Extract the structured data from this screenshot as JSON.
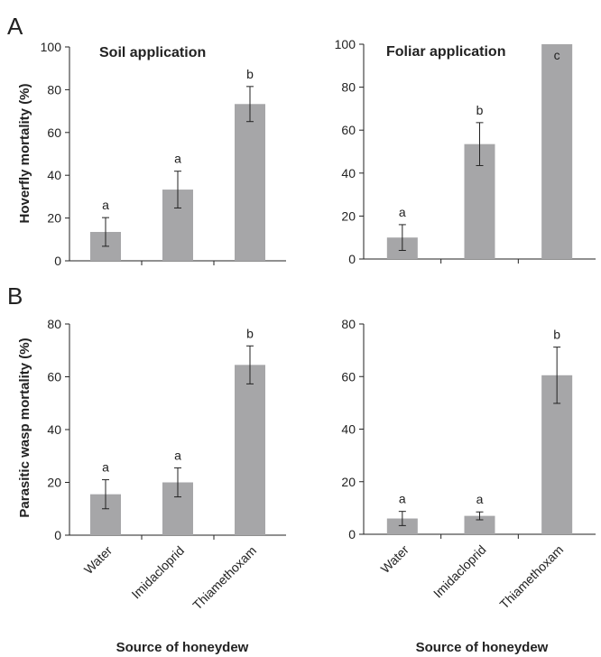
{
  "figure": {
    "panel_labels": [
      "A",
      "B"
    ],
    "xlabel": "Source of honeydew",
    "colors": {
      "bar": "#a6a6a8",
      "axis": "#222222",
      "text": "#222222"
    }
  },
  "chart_data": [
    {
      "type": "bar",
      "title": "Soil application",
      "panel": "A",
      "ylabel": "Hoverfly mortality (%)",
      "xlabel": "",
      "categories": [
        "Water",
        "Imidacloprid",
        "Thiamethoxam"
      ],
      "values": [
        13.5,
        33.3,
        73.3
      ],
      "error": [
        6.7,
        8.6,
        8.2
      ],
      "significance": [
        "a",
        "a",
        "b"
      ],
      "ylim": [
        0,
        100
      ],
      "yticks": [
        0,
        20,
        40,
        60,
        80,
        100
      ],
      "grid": false
    },
    {
      "type": "bar",
      "title": "Foliar application",
      "panel": "A",
      "ylabel": "",
      "xlabel": "",
      "categories": [
        "Water",
        "Imidacloprid",
        "Thiamethoxam"
      ],
      "values": [
        10,
        53.5,
        100
      ],
      "error": [
        6,
        10,
        0
      ],
      "significance": [
        "a",
        "b",
        "c"
      ],
      "ylim": [
        0,
        100
      ],
      "yticks": [
        0,
        20,
        40,
        60,
        80,
        100
      ],
      "grid": false
    },
    {
      "type": "bar",
      "title": "",
      "panel": "B",
      "ylabel": "Parasitic wasp mortality (%)",
      "xlabel": "Source of honeydew",
      "categories": [
        "Water",
        "Imidacloprid",
        "Thiamethoxam"
      ],
      "values": [
        15.5,
        20,
        64.5
      ],
      "error": [
        5.5,
        5.5,
        7.2
      ],
      "significance": [
        "a",
        "a",
        "b"
      ],
      "ylim": [
        0,
        80
      ],
      "yticks": [
        0,
        20,
        40,
        60,
        80
      ],
      "grid": false
    },
    {
      "type": "bar",
      "title": "",
      "panel": "B",
      "ylabel": "",
      "xlabel": "Source of honeydew",
      "categories": [
        "Water",
        "Imidacloprid",
        "Thiamethoxam"
      ],
      "values": [
        6,
        7,
        60.5
      ],
      "error": [
        2.7,
        1.5,
        10.7
      ],
      "significance": [
        "a",
        "a",
        "b"
      ],
      "ylim": [
        0,
        80
      ],
      "yticks": [
        0,
        20,
        40,
        60,
        80
      ],
      "grid": false
    }
  ]
}
